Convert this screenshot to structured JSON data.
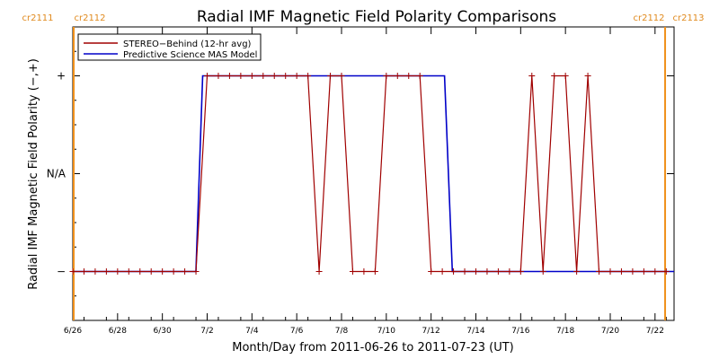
{
  "chart_data": {
    "type": "line",
    "title": "Radial IMF Magnetic Field Polarity Comparisons",
    "xlabel": "Month/Day from 2011-06-26 to 2011-07-23 (UT)",
    "ylabel": "Radial IMF Magnetic Field Polarity (−,+)",
    "x_unit": "days",
    "xlim": [
      0,
      26.85
    ],
    "ylim": [
      -1.5,
      1.5
    ],
    "y_ticks": [
      {
        "value": 1,
        "label": "+"
      },
      {
        "value": 0,
        "label": "N/A"
      },
      {
        "value": -1,
        "label": "−"
      }
    ],
    "x_ticks": [
      {
        "value": 0,
        "label": "6/26"
      },
      {
        "value": 2,
        "label": "6/28"
      },
      {
        "value": 4,
        "label": "6/30"
      },
      {
        "value": 6,
        "label": "7/2"
      },
      {
        "value": 8,
        "label": "7/4"
      },
      {
        "value": 10,
        "label": "7/6"
      },
      {
        "value": 12,
        "label": "7/8"
      },
      {
        "value": 14,
        "label": "7/10"
      },
      {
        "value": 16,
        "label": "7/12"
      },
      {
        "value": 18,
        "label": "7/14"
      },
      {
        "value": 20,
        "label": "7/16"
      },
      {
        "value": 22,
        "label": "7/18"
      },
      {
        "value": 24,
        "label": "7/20"
      },
      {
        "value": 26,
        "label": "7/22"
      }
    ],
    "carrington_markers": [
      {
        "x": 0,
        "label_left": "cr2111",
        "label_right": "cr2112"
      },
      {
        "x": 26.45,
        "label_left": "cr2112",
        "label_right": "cr2113"
      }
    ],
    "legend_position": "top-left",
    "series": [
      {
        "name": "STEREO−Behind (12-hr avg)",
        "color": "#a00000",
        "markers": true,
        "x": [
          0,
          0.5,
          1,
          1.5,
          2,
          2.5,
          3,
          3.5,
          4,
          4.5,
          5,
          5.5,
          6,
          6.5,
          7,
          7.5,
          8,
          8.5,
          9,
          9.5,
          10,
          10.5,
          11,
          11.5,
          12,
          12.5,
          13,
          13.5,
          14,
          14.5,
          15,
          15.5,
          16,
          16.5,
          17,
          17.5,
          18,
          18.5,
          19,
          19.5,
          20,
          20.5,
          21,
          21.5,
          22,
          22.5,
          23,
          23.5,
          24,
          24.5,
          25,
          25.5,
          26,
          26.5
        ],
        "values": [
          -1,
          -1,
          -1,
          -1,
          -1,
          -1,
          -1,
          -1,
          -1,
          -1,
          -1,
          -1,
          1,
          1,
          1,
          1,
          1,
          1,
          1,
          1,
          1,
          1,
          -1,
          1,
          1,
          -1,
          -1,
          -1,
          1,
          1,
          1,
          1,
          -1,
          -1,
          -1,
          -1,
          -1,
          -1,
          -1,
          -1,
          -1,
          1,
          -1,
          1,
          1,
          -1,
          1,
          -1,
          -1,
          -1,
          -1,
          -1,
          -1,
          -1
        ]
      },
      {
        "name": "Predictive Science MAS Model",
        "color": "#0000c8",
        "markers": false,
        "x": [
          0,
          5.5,
          5.8,
          16.6,
          16.95,
          26.85
        ],
        "values": [
          -1,
          -1,
          1,
          1,
          -1,
          -1
        ]
      }
    ]
  }
}
